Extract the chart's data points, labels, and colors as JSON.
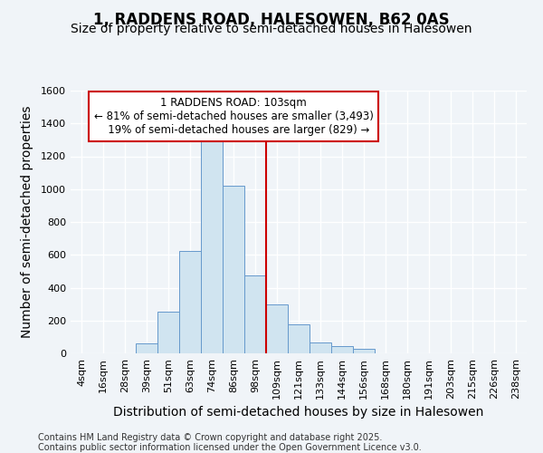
{
  "title": "1, RADDENS ROAD, HALESOWEN, B62 0AS",
  "subtitle": "Size of property relative to semi-detached houses in Halesowen",
  "xlabel": "Distribution of semi-detached houses by size in Halesowen",
  "ylabel": "Number of semi-detached properties",
  "footer": "Contains HM Land Registry data © Crown copyright and database right 2025.\nContains public sector information licensed under the Open Government Licence v3.0.",
  "bin_labels": [
    "4sqm",
    "16sqm",
    "28sqm",
    "39sqm",
    "51sqm",
    "63sqm",
    "74sqm",
    "86sqm",
    "98sqm",
    "109sqm",
    "121sqm",
    "133sqm",
    "144sqm",
    "156sqm",
    "168sqm",
    "180sqm",
    "191sqm",
    "203sqm",
    "215sqm",
    "226sqm",
    "238sqm"
  ],
  "values": [
    0,
    0,
    0,
    60,
    255,
    625,
    1310,
    1020,
    475,
    300,
    175,
    65,
    45,
    25,
    0,
    0,
    0,
    0,
    0,
    0,
    0
  ],
  "bar_color": "#d0e4f0",
  "bar_edge_color": "#6699cc",
  "property_label": "1 RADDENS ROAD: 103sqm",
  "pct_smaller": 81,
  "count_smaller": 3493,
  "pct_larger": 19,
  "count_larger": 829,
  "vline_color": "#cc0000",
  "vline_x_index": 8.5,
  "ylim": [
    0,
    1600
  ],
  "yticks": [
    0,
    200,
    400,
    600,
    800,
    1000,
    1200,
    1400,
    1600
  ],
  "bg_color": "#f0f4f8",
  "plot_bg_color": "#f0f4f8",
  "title_fontsize": 12,
  "subtitle_fontsize": 10,
  "axis_label_fontsize": 10,
  "tick_fontsize": 8,
  "footer_fontsize": 7,
  "annot_fontsize": 8.5
}
